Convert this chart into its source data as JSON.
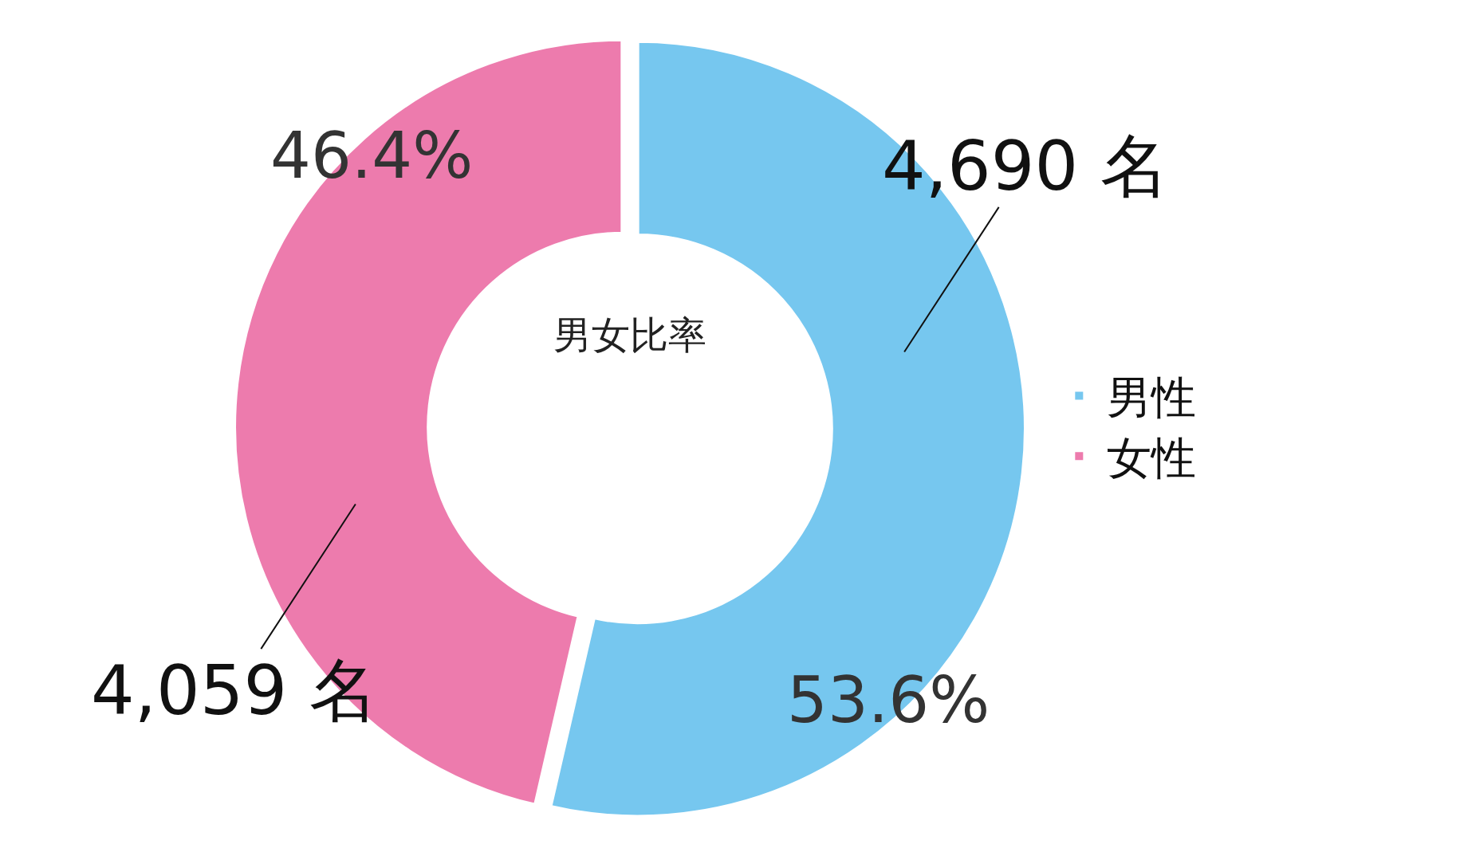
{
  "chart_data": {
    "type": "donut",
    "title": "男女比率",
    "categories": [
      "男性",
      "女性"
    ],
    "values": [
      4690,
      4059
    ],
    "colors": [
      "#76c7ef",
      "#ed7bad"
    ],
    "value_labels": [
      "4,690 名",
      "4,059 名"
    ],
    "annotations": [
      "53.6%",
      "46.4%"
    ],
    "legend": "right"
  }
}
